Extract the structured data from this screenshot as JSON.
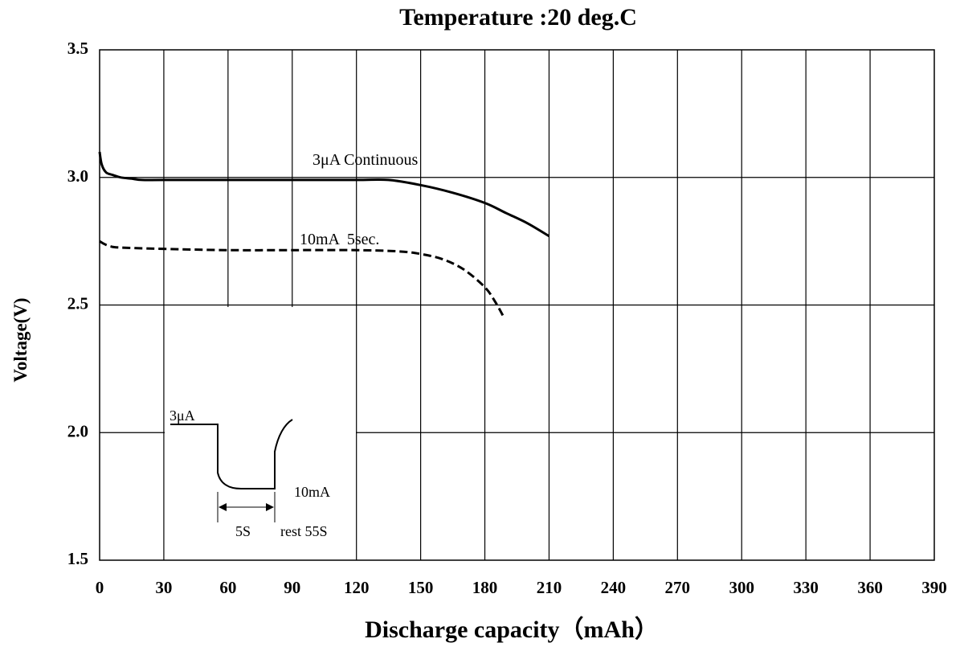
{
  "chart_data": {
    "type": "line",
    "title": "Temperature :20 deg.C",
    "xlabel": "Discharge capacity（mAh）",
    "ylabel": "Voltage(V)",
    "xlim": [
      0,
      390
    ],
    "ylim": [
      1.5,
      3.5
    ],
    "x_ticks": [
      "0",
      "30",
      "60",
      "90",
      "120",
      "150",
      "180",
      "210",
      "240",
      "270",
      "300",
      "330",
      "360",
      "390"
    ],
    "y_ticks": [
      "1.5",
      "2.0",
      "2.5",
      "3.0",
      "3.5"
    ],
    "grid": true,
    "series": [
      {
        "name": "3μA Continuous",
        "style": "solid",
        "color": "#000000",
        "x": [
          0,
          1,
          3,
          6,
          10,
          15,
          20,
          30,
          60,
          90,
          120,
          135,
          150,
          165,
          180,
          190,
          200,
          210
        ],
        "y": [
          3.1,
          3.05,
          3.02,
          3.01,
          3.0,
          2.995,
          2.99,
          2.99,
          2.99,
          2.99,
          2.99,
          2.99,
          2.97,
          2.94,
          2.9,
          2.86,
          2.82,
          2.77
        ]
      },
      {
        "name": "10mA  5sec.",
        "style": "dashed",
        "color": "#000000",
        "x": [
          0,
          2,
          5,
          10,
          30,
          60,
          90,
          120,
          140,
          150,
          160,
          170,
          180,
          185,
          189
        ],
        "y": [
          2.75,
          2.74,
          2.73,
          2.725,
          2.72,
          2.715,
          2.715,
          2.715,
          2.71,
          2.7,
          2.68,
          2.64,
          2.57,
          2.51,
          2.45
        ]
      }
    ],
    "inset": {
      "labels": {
        "low_current": "3μA",
        "high_current": "10mA",
        "pulse_time": "5S",
        "rest_time": "rest 55S"
      }
    }
  }
}
